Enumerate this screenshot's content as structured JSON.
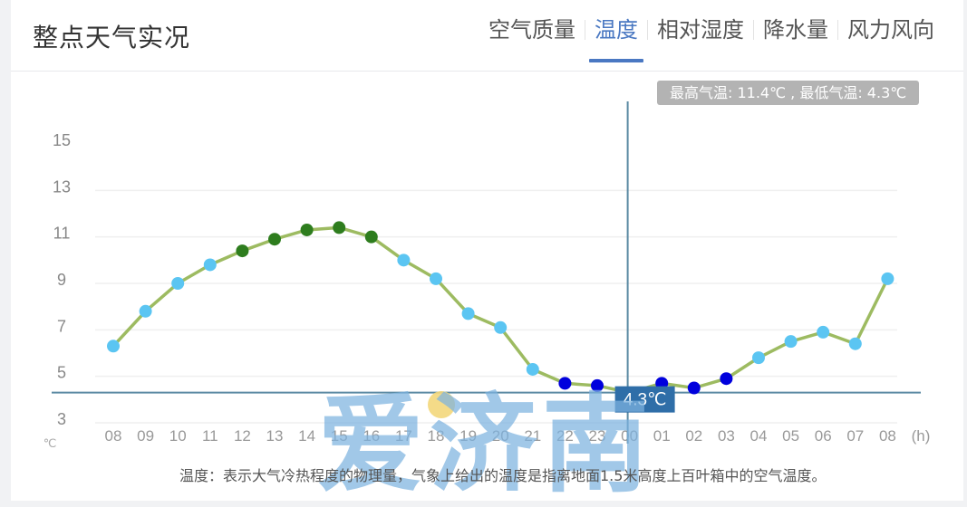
{
  "header": {
    "title": "整点天气实况",
    "tabs": [
      {
        "label": "空气质量",
        "active": false
      },
      {
        "label": "温度",
        "active": true
      },
      {
        "label": "相对湿度",
        "active": false
      },
      {
        "label": "降水量",
        "active": false
      },
      {
        "label": "风力风向",
        "active": false
      }
    ]
  },
  "summary": {
    "text": "最高气温: 11.4℃ , 最低气温: 4.3℃",
    "max": 11.4,
    "min": 4.3
  },
  "tooltip": {
    "value_label": "4.3℃",
    "hour": "00"
  },
  "description": "温度：表示大气冷热程度的物理量，气象上给出的温度是指离地面1.5米高度上百叶箱中的空气温度。",
  "watermark": "爱济南",
  "colors": {
    "accent": "#4a78c2",
    "line": "#9dbb61",
    "point_normal": "#5bc5f2",
    "point_high": "#2e7d1e",
    "point_low": "#0000dd",
    "crosshair": "#5b8aa3",
    "tooltip_bg": "#2f6ea8"
  },
  "chart_data": {
    "type": "line",
    "title": "温度",
    "xlabel": "(h)",
    "ylabel": "℃",
    "ylim": [
      3,
      15
    ],
    "yticks": [
      3,
      5,
      7,
      9,
      11,
      13,
      15
    ],
    "grid": true,
    "categories": [
      "08",
      "09",
      "10",
      "11",
      "12",
      "13",
      "14",
      "15",
      "16",
      "17",
      "18",
      "19",
      "20",
      "21",
      "22",
      "23",
      "00",
      "01",
      "02",
      "03",
      "04",
      "05",
      "06",
      "07",
      "08"
    ],
    "series": [
      {
        "name": "温度",
        "values": [
          6.3,
          7.8,
          9.0,
          9.8,
          10.4,
          10.9,
          11.3,
          11.4,
          11.0,
          10.0,
          9.2,
          7.7,
          7.1,
          5.3,
          4.7,
          4.6,
          4.3,
          4.7,
          4.5,
          4.9,
          5.8,
          6.5,
          6.9,
          6.4,
          9.2
        ]
      }
    ],
    "annotations": [
      {
        "type": "crosshair",
        "x": "00",
        "y": 4.3,
        "label": "4.3℃"
      }
    ]
  }
}
